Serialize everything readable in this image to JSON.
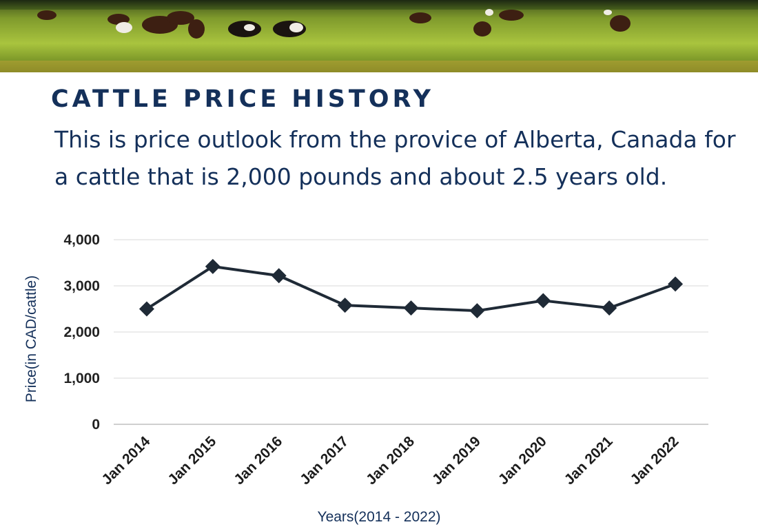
{
  "header": {
    "title": "CATTLE PRICE HISTORY",
    "subtitle": "This is price outlook from the provice of Alberta, Canada for a cattle that is 2,000 pounds and about 2.5 years old."
  },
  "banner": {
    "image": "cattle grazing in a green pasture at sunset",
    "colors": {
      "sky": "#2b3b1c",
      "grass_light": "#9bb83a",
      "grass_dark": "#3f5a14",
      "cow": "#4a2a1a"
    }
  },
  "colors": {
    "title": "#14305a",
    "line": "#1f2a36",
    "grid": "#d9d9d9",
    "axis": "#bfbfbf"
  },
  "chart_data": {
    "type": "line",
    "title": "",
    "xlabel": "Years(2014 - 2022)",
    "ylabel": "Price(in CAD/cattle)",
    "categories": [
      "Jan 2014",
      "Jan 2015",
      "Jan 2016",
      "Jan 2017",
      "Jan 2018",
      "Jan 2019",
      "Jan 2020",
      "Jan 2021",
      "Jan 2022"
    ],
    "values": [
      2500,
      3420,
      3220,
      2580,
      2520,
      2460,
      2680,
      2520,
      3040
    ],
    "ylim": [
      0,
      4000
    ],
    "yticks": [
      0,
      1000,
      2000,
      3000,
      4000
    ],
    "ytick_labels": [
      "0",
      "1,000",
      "2,000",
      "3,000",
      "4,000"
    ],
    "marker": "diamond",
    "grid": true,
    "legend": "none"
  }
}
